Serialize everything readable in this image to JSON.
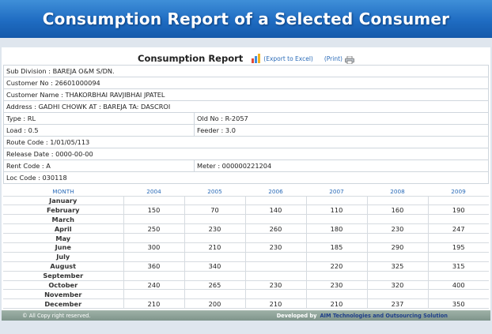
{
  "banner": {
    "title": "Consumption Report of a Selected Consumer"
  },
  "report": {
    "title": "Consumption Report",
    "export_label": "(Export to Excel)",
    "print_label": "(Print)"
  },
  "info": {
    "sub_division": "Sub Division  :  BAREJA O&M S/DN.",
    "customer_no": "Customer No  :  26601000094",
    "customer_name": "Customer Name  :  THAKORBHAI RAVJIBHAI JPATEL",
    "address": "Address  :  GADHI CHOWK AT : BAREJA TA: DASCROI",
    "type": "Type  :  RL",
    "old_no": "Old No  :  R-2057",
    "load": "Load  :  0.5",
    "feeder": "Feeder  :  3.0",
    "route_code": "Route Code  :  1/01/05/113",
    "release_date": "Release Date  :  0000-00-00",
    "rent_code": "Rent Code  :  A",
    "meter": "Meter  :  000000221204",
    "loc_code": "Loc Code  :  030118"
  },
  "consumption": {
    "headers": [
      "MONTH",
      "2004",
      "2005",
      "2006",
      "2007",
      "2008",
      "2009"
    ],
    "rows": [
      [
        "January",
        "",
        "",
        "",
        "",
        "",
        ""
      ],
      [
        "February",
        "150",
        "70",
        "140",
        "110",
        "160",
        "190"
      ],
      [
        "March",
        "",
        "",
        "",
        "",
        "",
        ""
      ],
      [
        "April",
        "250",
        "230",
        "260",
        "180",
        "230",
        "247"
      ],
      [
        "May",
        "",
        "",
        "",
        "",
        "",
        ""
      ],
      [
        "June",
        "300",
        "210",
        "230",
        "185",
        "290",
        "195"
      ],
      [
        "July",
        "",
        "",
        "",
        "",
        "",
        ""
      ],
      [
        "August",
        "360",
        "340",
        "",
        "220",
        "325",
        "315"
      ],
      [
        "September",
        "",
        "",
        "",
        "",
        "",
        ""
      ],
      [
        "October",
        "240",
        "265",
        "230",
        "230",
        "320",
        "400"
      ],
      [
        "November",
        "",
        "",
        "",
        "",
        "",
        ""
      ],
      [
        "December",
        "210",
        "200",
        "210",
        "210",
        "237",
        "350"
      ]
    ]
  },
  "footer": {
    "copyright": "© All Copy right reserved.",
    "developed_by": "Developed by",
    "developer": "AIM Technologies and Outsourcing Solution"
  },
  "colors": {
    "banner": "#1f6cc2",
    "link": "#2a6bb8",
    "footer": "#8aa096"
  },
  "icons": {
    "export": "chart-icon",
    "print": "printer-icon"
  }
}
